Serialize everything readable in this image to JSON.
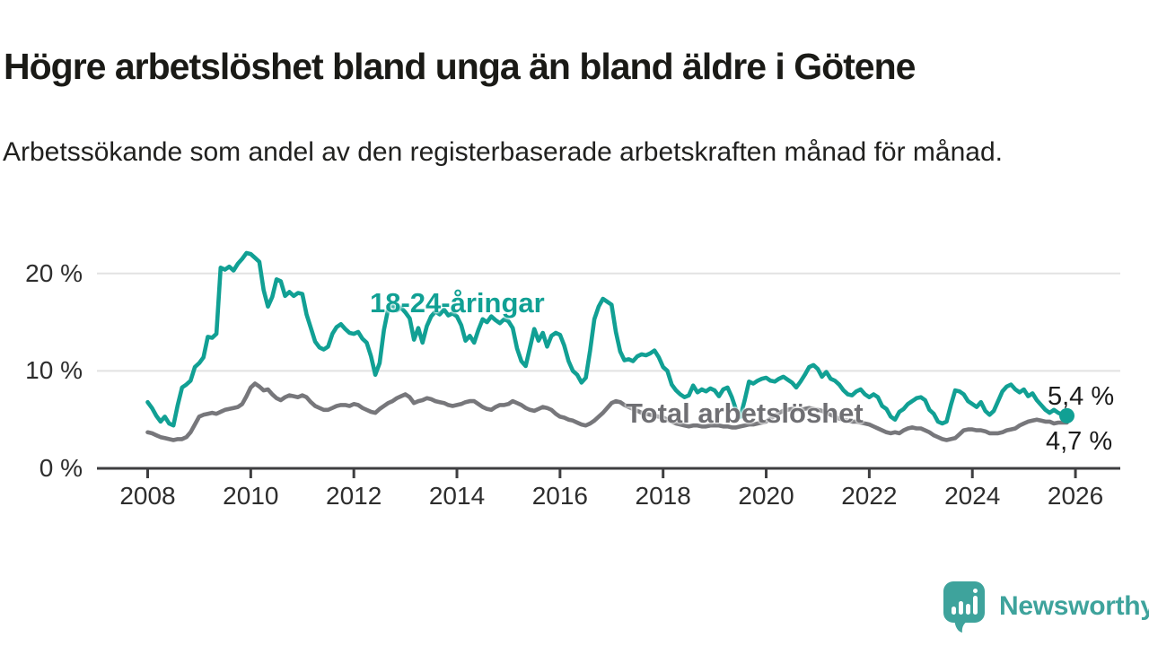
{
  "header": {
    "title": "Högre arbetslöshet bland unga än bland äldre i Götene",
    "subtitle": "Arbetssökande som andel av den registerbaserade arbetskraften månad för månad."
  },
  "chart_data": {
    "type": "line",
    "title": "Högre arbetslöshet bland unga än bland äldre i Götene",
    "subtitle": "Arbetssökande som andel av den registerbaserade arbetskraften månad för månad.",
    "unit": "%",
    "x_start_year": 2008,
    "x_step": "month",
    "x_tick_years": [
      2008,
      2010,
      2012,
      2014,
      2016,
      2018,
      2020,
      2022,
      2024,
      2026
    ],
    "y_ticks": [
      {
        "value": 0,
        "label": "0 %"
      },
      {
        "value": 10,
        "label": "10 %"
      },
      {
        "value": 20,
        "label": "20 %"
      }
    ],
    "ylim": [
      0,
      23.2
    ],
    "grid": "horizontal",
    "colors": {
      "young": "#11a094",
      "total": "#77777b",
      "grid": "#e2e2e2",
      "axis": "#3e3e40",
      "tick_text": "#2d2d2d"
    },
    "series": [
      {
        "name": "18-24-åringar",
        "color": "#11a094",
        "end_label": "5,4 %",
        "end_dot": true,
        "values": [
          6.8,
          6.2,
          5.4,
          4.8,
          5.3,
          4.6,
          4.4,
          6.5,
          8.3,
          8.6,
          9.0,
          10.4,
          10.8,
          11.4,
          13.5,
          13.4,
          13.8,
          20.6,
          20.4,
          20.7,
          20.3,
          21.0,
          21.5,
          22.1,
          22.0,
          21.6,
          21.2,
          18.3,
          16.6,
          17.6,
          19.4,
          19.2,
          17.7,
          18.1,
          17.7,
          18.0,
          17.9,
          15.8,
          14.4,
          13.0,
          12.4,
          12.2,
          12.5,
          13.8,
          14.5,
          14.8,
          14.3,
          13.9,
          13.8,
          14.0,
          13.3,
          12.9,
          11.5,
          9.6,
          10.8,
          14.2,
          16.4,
          16.8,
          16.2,
          16.5,
          16.0,
          15.4,
          13.2,
          14.4,
          12.9,
          14.6,
          15.6,
          16.1,
          15.8,
          16.3,
          15.7,
          15.9,
          15.6,
          14.7,
          13.1,
          13.6,
          12.9,
          14.2,
          15.3,
          15.0,
          15.6,
          15.2,
          14.9,
          15.3,
          15.1,
          14.4,
          12.3,
          11.0,
          10.5,
          12.4,
          14.3,
          13.1,
          13.9,
          12.5,
          13.6,
          13.9,
          13.7,
          12.6,
          11.0,
          10.0,
          9.6,
          8.8,
          9.3,
          12.1,
          15.3,
          16.6,
          17.4,
          17.1,
          16.8,
          14.0,
          12.0,
          11.1,
          11.2,
          11.0,
          11.5,
          11.7,
          11.6,
          11.8,
          12.1,
          11.4,
          10.4,
          10.0,
          8.6,
          8.0,
          7.6,
          7.3,
          7.5,
          8.5,
          7.8,
          8.1,
          7.9,
          8.2,
          8.0,
          7.4,
          8.1,
          8.3,
          7.3,
          6.0,
          5.3,
          7.0,
          8.9,
          8.7,
          9.0,
          9.2,
          9.3,
          9.0,
          8.9,
          9.2,
          9.4,
          9.1,
          8.8,
          8.3,
          8.9,
          9.6,
          10.4,
          10.6,
          10.2,
          9.4,
          9.9,
          9.2,
          9.0,
          8.6,
          8.0,
          7.6,
          7.5,
          7.9,
          8.1,
          7.6,
          7.3,
          7.6,
          7.3,
          6.4,
          6.1,
          5.3,
          5.0,
          5.8,
          6.1,
          6.6,
          6.9,
          7.2,
          7.3,
          7.0,
          6.0,
          5.6,
          4.8,
          4.6,
          4.8,
          6.5,
          8.0,
          7.9,
          7.6,
          6.9,
          6.6,
          6.3,
          6.8,
          5.9,
          5.5,
          5.9,
          6.9,
          7.9,
          8.4,
          8.6,
          8.1,
          7.8,
          8.1,
          7.4,
          7.7,
          7.0,
          6.5,
          6.0,
          5.7,
          6.0,
          5.7,
          5.5,
          5.4
        ]
      },
      {
        "name": "Total arbetslöshet",
        "color": "#77777b",
        "end_label": "4,7 %",
        "end_dot": false,
        "values": [
          3.7,
          3.6,
          3.4,
          3.2,
          3.1,
          3.0,
          2.9,
          3.0,
          3.0,
          3.2,
          3.7,
          4.5,
          5.3,
          5.5,
          5.6,
          5.7,
          5.6,
          5.8,
          6.0,
          6.1,
          6.2,
          6.3,
          6.6,
          7.4,
          8.3,
          8.7,
          8.4,
          8.0,
          8.1,
          7.6,
          7.2,
          7.0,
          7.3,
          7.5,
          7.4,
          7.3,
          7.5,
          7.3,
          6.8,
          6.4,
          6.2,
          6.0,
          6.0,
          6.2,
          6.4,
          6.5,
          6.5,
          6.4,
          6.6,
          6.5,
          6.2,
          6.0,
          5.8,
          5.7,
          6.1,
          6.4,
          6.7,
          6.9,
          7.2,
          7.4,
          7.6,
          7.3,
          6.7,
          6.9,
          7.0,
          7.2,
          7.1,
          6.9,
          6.8,
          6.7,
          6.5,
          6.4,
          6.5,
          6.6,
          6.8,
          6.9,
          6.9,
          6.6,
          6.3,
          6.1,
          6.0,
          6.3,
          6.5,
          6.5,
          6.6,
          6.9,
          6.7,
          6.5,
          6.2,
          6.0,
          5.9,
          6.1,
          6.3,
          6.2,
          6.0,
          5.6,
          5.3,
          5.2,
          5.0,
          4.9,
          4.7,
          4.5,
          4.4,
          4.6,
          4.9,
          5.3,
          5.7,
          6.2,
          6.7,
          6.9,
          6.8,
          6.5,
          6.3,
          6.1,
          5.9,
          5.7,
          5.6,
          5.5,
          5.4,
          5.3,
          5.2,
          5.0,
          4.8,
          4.6,
          4.5,
          4.4,
          4.3,
          4.4,
          4.4,
          4.3,
          4.3,
          4.4,
          4.4,
          4.4,
          4.3,
          4.3,
          4.2,
          4.2,
          4.3,
          4.4,
          4.5,
          4.5,
          4.6,
          4.7,
          4.8,
          5.1,
          5.4,
          5.7,
          5.9,
          6.0,
          6.1,
          6.0,
          6.0,
          6.1,
          6.2,
          6.1,
          6.0,
          5.9,
          5.7,
          5.5,
          5.3,
          5.1,
          5.0,
          4.9,
          4.8,
          4.8,
          4.7,
          4.6,
          4.5,
          4.3,
          4.1,
          3.9,
          3.7,
          3.6,
          3.7,
          3.6,
          3.9,
          4.1,
          4.2,
          4.1,
          4.1,
          3.9,
          3.7,
          3.4,
          3.2,
          3.0,
          2.9,
          3.0,
          3.1,
          3.5,
          3.9,
          4.0,
          4.0,
          3.9,
          3.9,
          3.8,
          3.6,
          3.6,
          3.6,
          3.7,
          3.9,
          4.0,
          4.1,
          4.4,
          4.6,
          4.8,
          4.9,
          5.0,
          4.9,
          4.8,
          4.8,
          4.6,
          4.7,
          4.7,
          4.7
        ]
      }
    ]
  },
  "branding": {
    "name": "Newsworthy",
    "logo_icon": "bar-chart-speech-bubble",
    "color": "#3ea39c"
  }
}
